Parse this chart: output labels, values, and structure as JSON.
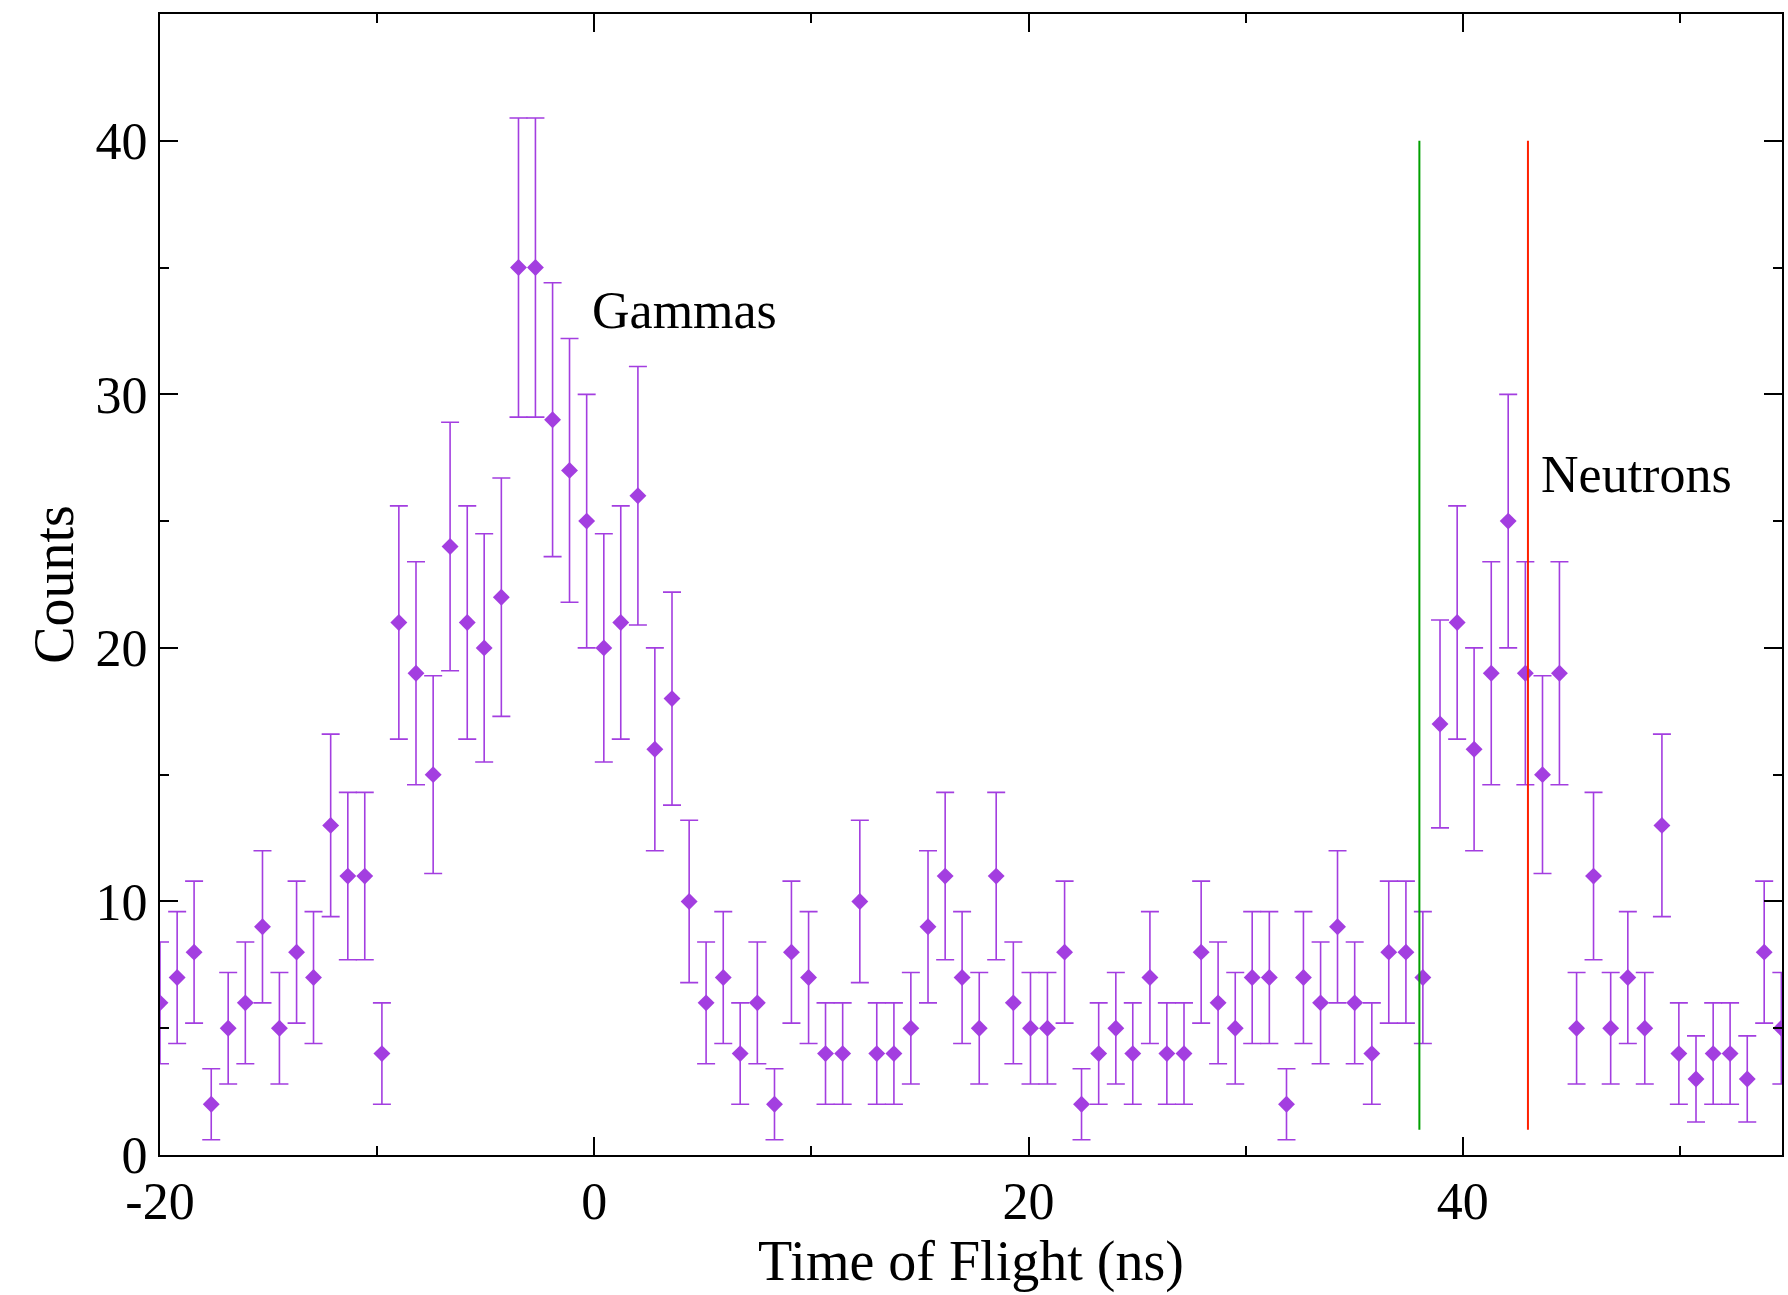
{
  "chart_data": {
    "type": "scatter",
    "xlabel": "Time of Flight (ns)",
    "ylabel": "Counts",
    "xlim": [
      -20,
      54.7
    ],
    "ylim": [
      0,
      45
    ],
    "xticks": [
      -20,
      {
        "value": -10,
        "label": null
      },
      0,
      {
        "value": 10,
        "label": null
      },
      20,
      {
        "value": 30,
        "label": null
      },
      40,
      {
        "value": 50,
        "label": null
      }
    ],
    "yticks": [
      0,
      {
        "value": 5,
        "label": null
      },
      10,
      {
        "value": 15,
        "label": null
      },
      20,
      {
        "value": 25,
        "label": null
      },
      30,
      {
        "value": 35,
        "label": null
      },
      40
    ],
    "grid": false,
    "marker": "diamond",
    "annotations": [
      "Gammas",
      "Neutrons"
    ],
    "series": [
      {
        "color": "#a33ee0",
        "x": [
          -20.0,
          -19.21,
          -18.43,
          -17.64,
          -16.86,
          -16.07,
          -15.28,
          -14.5,
          -13.71,
          -12.93,
          -12.14,
          -11.35,
          -10.57,
          -9.78,
          -9.0,
          -8.21,
          -7.42,
          -6.64,
          -5.85,
          -5.07,
          -4.28,
          -3.49,
          -2.71,
          -1.92,
          -1.14,
          -0.35,
          0.44,
          1.22,
          2.01,
          2.79,
          3.58,
          4.37,
          5.15,
          5.94,
          6.72,
          7.51,
          8.3,
          9.08,
          9.87,
          10.65,
          11.44,
          12.23,
          13.01,
          13.8,
          14.58,
          15.37,
          16.16,
          16.94,
          17.73,
          18.51,
          19.3,
          20.09,
          20.87,
          21.66,
          22.44,
          23.23,
          24.02,
          24.8,
          25.59,
          26.37,
          27.16,
          27.95,
          28.73,
          29.52,
          30.3,
          31.09,
          31.88,
          32.66,
          33.45,
          34.23,
          35.02,
          35.81,
          36.59,
          37.38,
          38.16,
          38.95,
          39.74,
          40.52,
          41.31,
          42.09,
          42.88,
          43.67,
          44.45,
          45.24,
          46.02,
          46.81,
          47.6,
          48.38,
          49.17,
          49.95,
          50.74,
          51.53,
          52.31,
          53.1,
          53.88,
          54.67
        ],
        "values": [
          6,
          7,
          8,
          2,
          5,
          6,
          9,
          5,
          8,
          7,
          13,
          11,
          11,
          4,
          21,
          19,
          15,
          24,
          21,
          20,
          22,
          35,
          35,
          29,
          27,
          25,
          20,
          21,
          26,
          16,
          18,
          10,
          6,
          7,
          4,
          6,
          2,
          8,
          7,
          4,
          4,
          10,
          4,
          4,
          5,
          9,
          11,
          7,
          5,
          11,
          6,
          5,
          5,
          8,
          2,
          4,
          5,
          4,
          7,
          4,
          4,
          8,
          6,
          5,
          7,
          7,
          2,
          7,
          6,
          9,
          6,
          4,
          8,
          8,
          7,
          17,
          21,
          16,
          19,
          25,
          19,
          15,
          19,
          5,
          11,
          5,
          7,
          5,
          13,
          4,
          3,
          4,
          4,
          3,
          8,
          5
        ],
        "errors": [
          2.4,
          2.6,
          2.8,
          1.4,
          2.2,
          2.4,
          3.0,
          2.2,
          2.8,
          2.6,
          3.6,
          3.3,
          3.3,
          2.0,
          4.6,
          4.4,
          3.9,
          4.9,
          4.6,
          4.5,
          4.7,
          5.9,
          5.9,
          5.4,
          5.2,
          5.0,
          4.5,
          4.6,
          5.1,
          4.0,
          4.2,
          3.2,
          2.4,
          2.6,
          2.0,
          2.4,
          1.4,
          2.8,
          2.6,
          2.0,
          2.0,
          3.2,
          2.0,
          2.0,
          2.2,
          3.0,
          3.3,
          2.6,
          2.2,
          3.3,
          2.4,
          2.2,
          2.2,
          2.8,
          1.4,
          2.0,
          2.2,
          2.0,
          2.6,
          2.0,
          2.0,
          2.8,
          2.4,
          2.2,
          2.6,
          2.6,
          1.4,
          2.6,
          2.4,
          3.0,
          2.4,
          2.0,
          2.8,
          2.8,
          2.6,
          4.1,
          4.6,
          4.0,
          4.4,
          5.0,
          4.4,
          3.9,
          4.4,
          2.2,
          3.3,
          2.2,
          2.6,
          2.2,
          3.6,
          2.0,
          1.7,
          2.0,
          2.0,
          1.7,
          2.8,
          2.2
        ]
      },
      {
        "type": "line",
        "marker": "none",
        "color": "#00a000",
        "x": [
          38,
          38
        ],
        "values": [
          1,
          40
        ]
      },
      {
        "type": "line",
        "marker": "none",
        "color": "#ff2000",
        "x": [
          43,
          43
        ],
        "values": [
          1,
          40
        ]
      }
    ]
  }
}
